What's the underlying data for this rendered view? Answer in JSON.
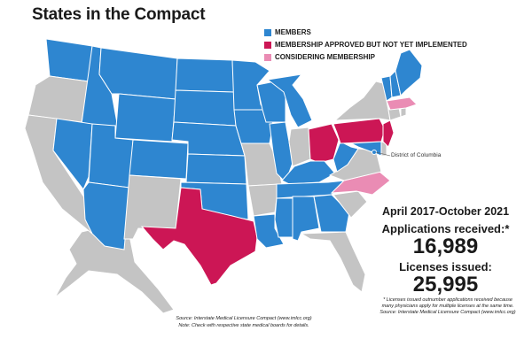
{
  "title": "States in the Compact",
  "legend": [
    {
      "label": "MEMBERS",
      "color": "#2e86d0"
    },
    {
      "label": "MEMBERSHIP APPROVED BUT NOT YET IMPLEMENTED",
      "color": "#cc1655"
    },
    {
      "label": "CONSIDERING MEMBERSHIP",
      "color": "#ea8cb4"
    }
  ],
  "colors": {
    "member": "#2e86d0",
    "approved": "#cc1655",
    "considering": "#ea8cb4",
    "nonmember": "#c4c4c4"
  },
  "map": {
    "dc_label": "District of Columbia",
    "states": {
      "WA": "member",
      "OR": "nonmember",
      "CA": "nonmember",
      "ID": "member",
      "NV": "member",
      "MT": "member",
      "WY": "member",
      "UT": "member",
      "AZ": "member",
      "CO": "member",
      "NM": "nonmember",
      "ND": "member",
      "SD": "member",
      "NE": "member",
      "KS": "member",
      "OK": "member",
      "TX": "approved",
      "MN": "member",
      "IA": "member",
      "MO": "nonmember",
      "AR": "nonmember",
      "LA": "member",
      "WI": "member",
      "IL": "member",
      "MI": "member",
      "IN": "nonmember",
      "OH": "approved",
      "KY": "member",
      "TN": "member",
      "MS": "member",
      "AL": "member",
      "GA": "member",
      "FL": "nonmember",
      "SC": "nonmember",
      "NC": "considering",
      "VA": "nonmember",
      "WV": "member",
      "MD": "member",
      "DE": "nonmember",
      "PA": "approved",
      "NJ": "approved",
      "NY": "nonmember",
      "CT": "nonmember",
      "RI": "nonmember",
      "MA": "considering",
      "VT": "member",
      "NH": "member",
      "ME": "member",
      "AK": "nonmember",
      "HI": "nonmember",
      "DC": "member"
    }
  },
  "stats": {
    "date_range": "April 2017-October 2021",
    "applications_label": "Applications received:*",
    "applications_value": "16,989",
    "licenses_label": "Licenses issued:",
    "licenses_value": "25,995"
  },
  "footnote": {
    "note": "* Licenses issued outnumber applications received because many physicians apply for multiple licenses at the same time.",
    "source": "Source: Interstate Medical Licensure Compact (www.imlcc.org)"
  },
  "source_left": {
    "line1": "Source: Interstate Medical Licensure Compact (www.imlcc.org)",
    "line2": "Note: Check with respective state medical boards for details."
  }
}
